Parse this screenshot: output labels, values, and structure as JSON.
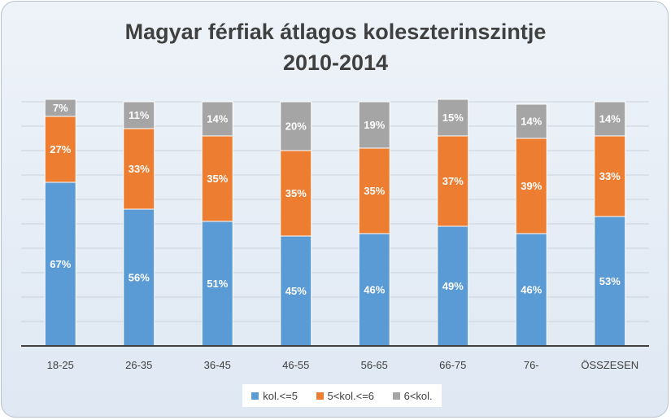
{
  "chart_data": {
    "type": "bar",
    "stacked": true,
    "title": [
      "Magyar férfiak átlagos koleszterinszintje",
      "2010-2014"
    ],
    "categories": [
      "18-25",
      "26-35",
      "36-45",
      "46-55",
      "56-65",
      "66-75",
      "76-",
      "ÖSSZESEN"
    ],
    "series": [
      {
        "name": "kol.<=5",
        "color": "#5b9bd5",
        "values": [
          67,
          56,
          51,
          45,
          46,
          49,
          46,
          53
        ],
        "labels": [
          "67%",
          "56%",
          "51%",
          "45%",
          "46%",
          "49%",
          "46%",
          "53%"
        ]
      },
      {
        "name": "5<kol.<=6",
        "color": "#ed7d31",
        "values": [
          27,
          33,
          35,
          35,
          35,
          37,
          39,
          33
        ],
        "labels": [
          "27%",
          "33%",
          "35%",
          "35%",
          "35%",
          "37%",
          "39%",
          "33%"
        ]
      },
      {
        "name": "6<kol.",
        "color": "#a5a5a5",
        "values": [
          7,
          11,
          14,
          20,
          19,
          15,
          14,
          14
        ],
        "labels": [
          "7%",
          "11%",
          "14%",
          "20%",
          "19%",
          "15%",
          "14%",
          "14%"
        ]
      }
    ],
    "ylim": [
      0,
      100
    ],
    "grid": true,
    "legend_position": "bottom"
  }
}
